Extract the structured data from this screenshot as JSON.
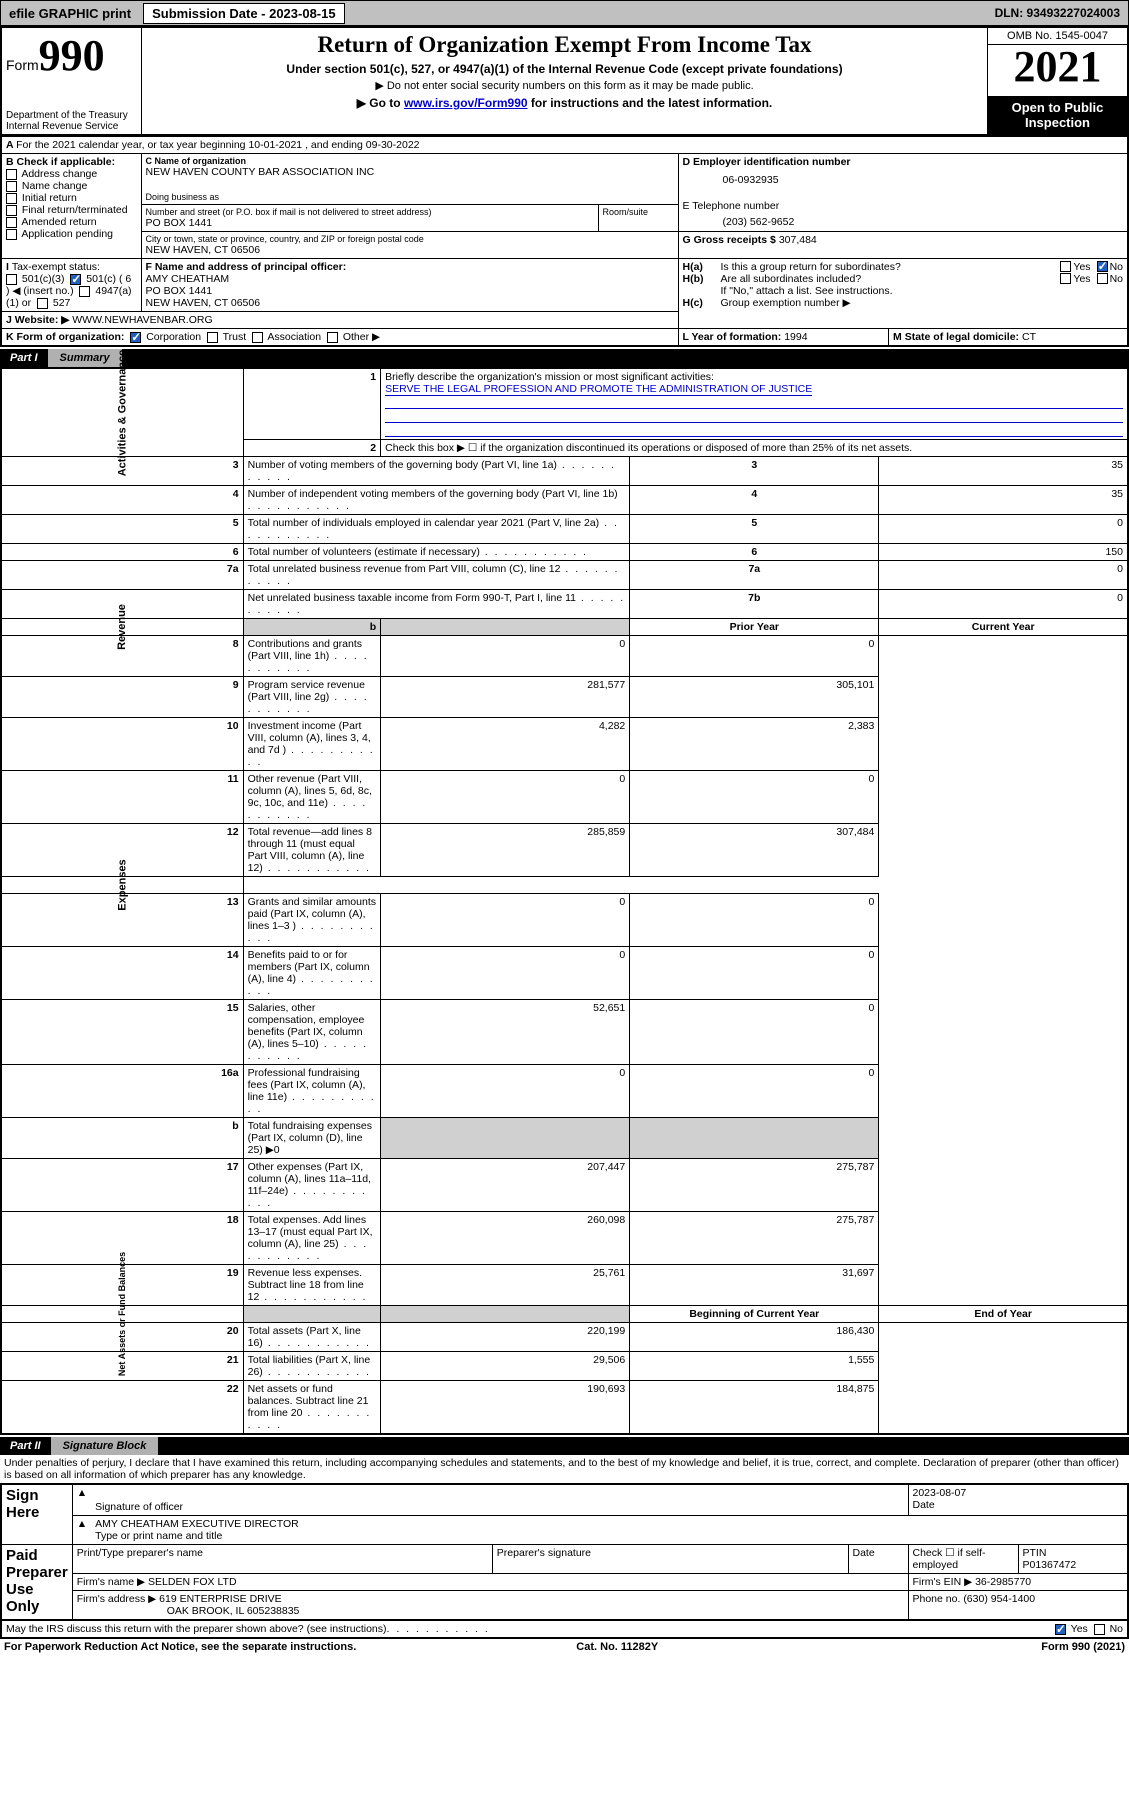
{
  "topbar": {
    "efile_label": "efile GRAPHIC print",
    "submission_label": "Submission Date - 2023-08-15",
    "dln": "DLN: 93493227024003"
  },
  "header": {
    "form_label": "Form",
    "form_number": "990",
    "dept": "Department of the Treasury",
    "irs": "Internal Revenue Service",
    "title": "Return of Organization Exempt From Income Tax",
    "subtitle": "Under section 501(c), 527, or 4947(a)(1) of the Internal Revenue Code (except private foundations)",
    "note1": "▶ Do not enter social security numbers on this form as it may be made public.",
    "note2_pre": "▶ Go to ",
    "note2_link": "www.irs.gov/Form990",
    "note2_post": " for instructions and the latest information.",
    "omb": "OMB No. 1545-0047",
    "year": "2021",
    "open_public": "Open to Public Inspection"
  },
  "A": {
    "line": "For the 2021 calendar year, or tax year beginning 10-01-2021   , and ending 09-30-2022"
  },
  "B": {
    "label": "B Check if applicable:",
    "opts": [
      "Address change",
      "Name change",
      "Initial return",
      "Final return/terminated",
      "Amended return",
      "Application pending"
    ]
  },
  "C": {
    "name_lbl": "C Name of organization",
    "name": "NEW HAVEN COUNTY BAR ASSOCIATION INC",
    "dba_lbl": "Doing business as",
    "addr_lbl": "Number and street (or P.O. box if mail is not delivered to street address)",
    "room_lbl": "Room/suite",
    "addr": "PO BOX 1441",
    "city_lbl": "City or town, state or province, country, and ZIP or foreign postal code",
    "city": "NEW HAVEN, CT  06506"
  },
  "D": {
    "lbl": "D Employer identification number",
    "val": "06-0932935"
  },
  "E": {
    "lbl": "E Telephone number",
    "val": "(203) 562-9652"
  },
  "G": {
    "lbl": "G Gross receipts $",
    "val": "307,484"
  },
  "F": {
    "lbl": "F Name and address of principal officer:",
    "name": "AMY CHEATHAM",
    "addr1": "PO BOX 1441",
    "addr2": "NEW HAVEN, CT  06506"
  },
  "H": {
    "a": "Is this a group return for subordinates?",
    "b": "Are all subordinates included?",
    "b_note": "If \"No,\" attach a list. See instructions.",
    "c": "Group exemption number ▶"
  },
  "I": {
    "lbl": "Tax-exempt status:",
    "o1": "501(c)(3)",
    "o2": "501(c) ( 6 ) ◀ (insert no.)",
    "o3": "4947(a)(1) or",
    "o4": "527"
  },
  "J": {
    "lbl": "Website: ▶",
    "val": "WWW.NEWHAVENBAR.ORG"
  },
  "K": {
    "lbl": "K Form of organization:",
    "o1": "Corporation",
    "o2": "Trust",
    "o3": "Association",
    "o4": "Other ▶"
  },
  "L": {
    "lbl": "L Year of formation:",
    "val": "1994"
  },
  "M": {
    "lbl": "M State of legal domicile:",
    "val": "CT"
  },
  "part1": {
    "title_p": "Part I",
    "title_t": "Summary",
    "sides": [
      "Activities & Governance",
      "Revenue",
      "Expenses",
      "Net Assets or Fund Balances"
    ],
    "line1_lbl": "Briefly describe the organization's mission or most significant activities:",
    "line1_val": "SERVE THE LEGAL PROFESSION AND PROMOTE THE ADMINISTRATION OF JUSTICE",
    "line2": "Check this box ▶ ☐  if the organization discontinued its operations or disposed of more than 25% of its net assets.",
    "rows_gov": [
      {
        "n": "3",
        "t": "Number of voting members of the governing body (Part VI, line 1a)",
        "box": "3",
        "v": "35"
      },
      {
        "n": "4",
        "t": "Number of independent voting members of the governing body (Part VI, line 1b)",
        "box": "4",
        "v": "35"
      },
      {
        "n": "5",
        "t": "Total number of individuals employed in calendar year 2021 (Part V, line 2a)",
        "box": "5",
        "v": "0"
      },
      {
        "n": "6",
        "t": "Total number of volunteers (estimate if necessary)",
        "box": "6",
        "v": "150"
      },
      {
        "n": "7a",
        "t": "Total unrelated business revenue from Part VIII, column (C), line 12",
        "box": "7a",
        "v": "0"
      },
      {
        "n": "",
        "t": "Net unrelated business taxable income from Form 990-T, Part I, line 11",
        "box": "7b",
        "v": "0"
      }
    ],
    "col_hdr_prior": "Prior Year",
    "col_hdr_curr": "Current Year",
    "rows_rev": [
      {
        "n": "8",
        "t": "Contributions and grants (Part VIII, line 1h)",
        "p": "0",
        "c": "0"
      },
      {
        "n": "9",
        "t": "Program service revenue (Part VIII, line 2g)",
        "p": "281,577",
        "c": "305,101"
      },
      {
        "n": "10",
        "t": "Investment income (Part VIII, column (A), lines 3, 4, and 7d )",
        "p": "4,282",
        "c": "2,383"
      },
      {
        "n": "11",
        "t": "Other revenue (Part VIII, column (A), lines 5, 6d, 8c, 9c, 10c, and 11e)",
        "p": "0",
        "c": "0"
      },
      {
        "n": "12",
        "t": "Total revenue—add lines 8 through 11 (must equal Part VIII, column (A), line 12)",
        "p": "285,859",
        "c": "307,484"
      }
    ],
    "rows_exp": [
      {
        "n": "13",
        "t": "Grants and similar amounts paid (Part IX, column (A), lines 1–3 )",
        "p": "0",
        "c": "0"
      },
      {
        "n": "14",
        "t": "Benefits paid to or for members (Part IX, column (A), line 4)",
        "p": "0",
        "c": "0"
      },
      {
        "n": "15",
        "t": "Salaries, other compensation, employee benefits (Part IX, column (A), lines 5–10)",
        "p": "52,651",
        "c": "0"
      },
      {
        "n": "16a",
        "t": "Professional fundraising fees (Part IX, column (A), line 11e)",
        "p": "0",
        "c": "0"
      },
      {
        "n": "b",
        "t": "Total fundraising expenses (Part IX, column (D), line 25) ▶0",
        "p": "",
        "c": "",
        "grey": true
      },
      {
        "n": "17",
        "t": "Other expenses (Part IX, column (A), lines 11a–11d, 11f–24e)",
        "p": "207,447",
        "c": "275,787"
      },
      {
        "n": "18",
        "t": "Total expenses. Add lines 13–17 (must equal Part IX, column (A), line 25)",
        "p": "260,098",
        "c": "275,787"
      },
      {
        "n": "19",
        "t": "Revenue less expenses. Subtract line 18 from line 12",
        "p": "25,761",
        "c": "31,697"
      }
    ],
    "col_hdr_beg": "Beginning of Current Year",
    "col_hdr_end": "End of Year",
    "rows_net": [
      {
        "n": "20",
        "t": "Total assets (Part X, line 16)",
        "p": "220,199",
        "c": "186,430"
      },
      {
        "n": "21",
        "t": "Total liabilities (Part X, line 26)",
        "p": "29,506",
        "c": "1,555"
      },
      {
        "n": "22",
        "t": "Net assets or fund balances. Subtract line 21 from line 20",
        "p": "190,693",
        "c": "184,875"
      }
    ]
  },
  "part2": {
    "title_p": "Part II",
    "title_t": "Signature Block",
    "penalty": "Under penalties of perjury, I declare that I have examined this return, including accompanying schedules and statements, and to the best of my knowledge and belief, it is true, correct, and complete. Declaration of preparer (other than officer) is based on all information of which preparer has any knowledge.",
    "sign_here": "Sign Here",
    "date": "2023-08-07",
    "sig_officer": "Signature of officer",
    "date_lbl": "Date",
    "name_title": "AMY CHEATHAM  EXECUTIVE DIRECTOR",
    "name_title_lbl": "Type or print name and title",
    "paid": "Paid Preparer Use Only",
    "prep_name_lbl": "Print/Type preparer's name",
    "prep_sig_lbl": "Preparer's signature",
    "prep_date_lbl": "Date",
    "self_emp": "Check ☐ if self-employed",
    "ptin_lbl": "PTIN",
    "ptin": "P01367472",
    "firm_name_lbl": "Firm's name  ▶",
    "firm_name": "SELDEN FOX LTD",
    "firm_ein_lbl": "Firm's EIN ▶",
    "firm_ein": "36-2985770",
    "firm_addr_lbl": "Firm's address ▶",
    "firm_addr1": "619 ENTERPRISE DRIVE",
    "firm_addr2": "OAK BROOK, IL  605238835",
    "phone_lbl": "Phone no.",
    "phone": "(630) 954-1400",
    "may_irs": "May the IRS discuss this return with the preparer shown above? (see instructions)"
  },
  "footer": {
    "left": "For Paperwork Reduction Act Notice, see the separate instructions.",
    "mid": "Cat. No. 11282Y",
    "right": "Form 990 (2021)"
  },
  "yn": {
    "yes": "Yes",
    "no": "No"
  }
}
